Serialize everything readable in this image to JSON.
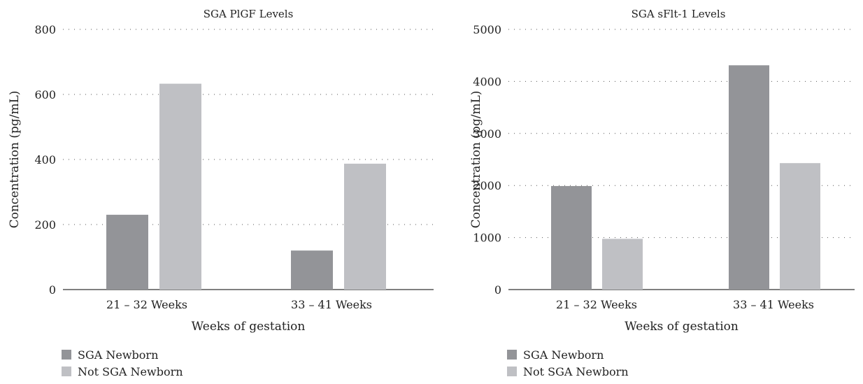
{
  "chart_data": [
    {
      "type": "bar",
      "title": "SGA PlGF Levels",
      "xlabel": "Weeks of gestation",
      "ylabel": "Concentration (pg/mL)",
      "categories": [
        "21 – 32 Weeks",
        "33 – 41 Weeks"
      ],
      "series": [
        {
          "name": "SGA Newborn",
          "values": [
            230,
            120
          ]
        },
        {
          "name": "Not SGA Newborn",
          "values": [
            633,
            387
          ]
        }
      ],
      "ylim": [
        0,
        800
      ],
      "yticks": [
        0,
        200,
        400,
        600,
        800
      ],
      "grid": true,
      "legend_position": "bottom-left"
    },
    {
      "type": "bar",
      "title": "SGA sFlt-1 Levels",
      "xlabel": "Weeks of gestation",
      "ylabel": "Concentration (pg/mL)",
      "categories": [
        "21 – 32 Weeks",
        "33 – 41 Weeks"
      ],
      "series": [
        {
          "name": "SGA Newborn",
          "values": [
            1990,
            4310
          ]
        },
        {
          "name": "Not SGA Newborn",
          "values": [
            975,
            2430
          ]
        }
      ],
      "ylim": [
        0,
        5000
      ],
      "yticks": [
        0,
        1000,
        2000,
        3000,
        4000,
        5000
      ],
      "grid": true,
      "legend_position": "bottom-left"
    }
  ],
  "colors": {
    "SGA Newborn": "#939498",
    "Not SGA Newborn": "#bfc0c4"
  }
}
